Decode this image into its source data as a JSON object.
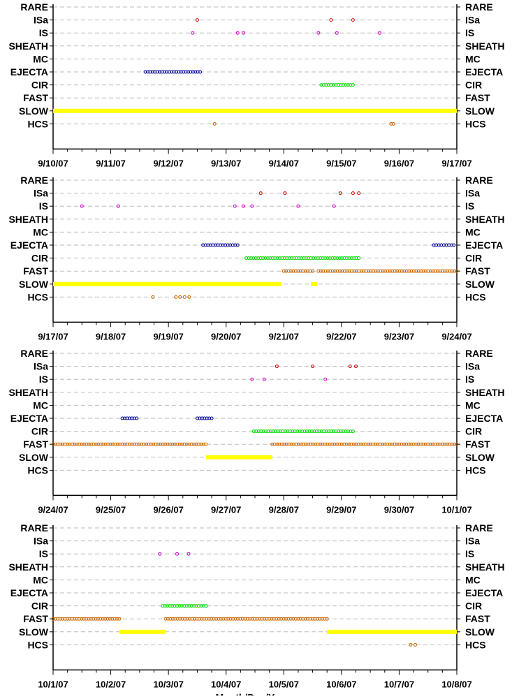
{
  "chart_data": [
    {
      "type": "scatter",
      "categories": [
        "RARE",
        "ISa",
        "IS",
        "SHEATH",
        "MC",
        "EJECTA",
        "CIR",
        "FAST",
        "SLOW",
        "HCS"
      ],
      "x_start": "9/10/07",
      "x_end": "9/17/07",
      "x_ticks": [
        "9/10/07",
        "9/11/07",
        "9/12/07",
        "9/13/07",
        "9/14/07",
        "9/15/07",
        "9/16/07",
        "9/17/07"
      ],
      "grid": true,
      "series": [
        {
          "category": "ISa",
          "color": "#cc0000",
          "points": [
            2.5,
            4.82,
            5.2
          ]
        },
        {
          "category": "IS",
          "color": "#cc00cc",
          "points": [
            2.42,
            3.2,
            3.3,
            4.6,
            4.92,
            5.66
          ]
        },
        {
          "category": "EJECTA",
          "color": "#000099",
          "spans": [
            [
              1.6,
              2.55
            ]
          ]
        },
        {
          "category": "CIR",
          "color": "#00dd00",
          "spans": [
            [
              4.65,
              5.2
            ]
          ]
        },
        {
          "category": "SLOW",
          "color": "#ffff00",
          "spans": [
            [
              0.0,
              7.0
            ]
          ]
        },
        {
          "category": "HCS",
          "color": "#cc6600",
          "points": [
            2.8,
            5.86,
            5.9
          ]
        }
      ]
    },
    {
      "type": "scatter",
      "categories": [
        "RARE",
        "ISa",
        "IS",
        "SHEATH",
        "MC",
        "EJECTA",
        "CIR",
        "FAST",
        "SLOW",
        "HCS"
      ],
      "x_start": "9/17/07",
      "x_end": "9/24/07",
      "x_ticks": [
        "9/17/07",
        "9/18/07",
        "9/19/07",
        "9/20/07",
        "9/21/07",
        "9/22/07",
        "9/23/07",
        "9/24/07"
      ],
      "grid": true,
      "series": [
        {
          "category": "ISa",
          "color": "#cc0000",
          "points": [
            3.6,
            4.02,
            4.98,
            5.2,
            5.3
          ]
        },
        {
          "category": "IS",
          "color": "#cc00cc",
          "points": [
            0.5,
            1.13,
            3.15,
            3.3,
            3.45,
            4.25,
            4.87
          ]
        },
        {
          "category": "EJECTA",
          "color": "#000099",
          "spans": [
            [
              2.6,
              3.2
            ],
            [
              6.6,
              6.95
            ]
          ]
        },
        {
          "category": "CIR",
          "color": "#00dd00",
          "spans": [
            [
              3.35,
              5.3
            ]
          ]
        },
        {
          "category": "FAST",
          "color": "#cc6600",
          "spans": [
            [
              4.0,
              4.5
            ],
            [
              4.6,
              7.0
            ]
          ]
        },
        {
          "category": "SLOW",
          "color": "#ffff00",
          "spans": [
            [
              0.0,
              3.95
            ],
            [
              4.47,
              4.58
            ]
          ]
        },
        {
          "category": "HCS",
          "color": "#cc6600",
          "points": [
            1.73,
            2.13,
            2.2,
            2.28,
            2.36
          ]
        }
      ]
    },
    {
      "type": "scatter",
      "categories": [
        "RARE",
        "ISa",
        "IS",
        "SHEATH",
        "MC",
        "EJECTA",
        "CIR",
        "FAST",
        "SLOW",
        "HCS"
      ],
      "x_start": "9/24/07",
      "x_end": "10/1/07",
      "x_ticks": [
        "9/24/07",
        "9/25/07",
        "9/26/07",
        "9/27/07",
        "9/28/07",
        "9/29/07",
        "9/30/07",
        "10/1/07"
      ],
      "grid": true,
      "series": [
        {
          "category": "ISa",
          "color": "#cc0000",
          "points": [
            3.88,
            4.5,
            5.15,
            5.25
          ]
        },
        {
          "category": "IS",
          "color": "#cc00cc",
          "points": [
            3.45,
            3.66,
            4.72
          ]
        },
        {
          "category": "EJECTA",
          "color": "#000099",
          "spans": [
            [
              1.2,
              1.45
            ],
            [
              2.5,
              2.75
            ]
          ]
        },
        {
          "category": "CIR",
          "color": "#00dd00",
          "spans": [
            [
              3.48,
              5.2
            ]
          ]
        },
        {
          "category": "FAST",
          "color": "#cc6600",
          "spans": [
            [
              0.0,
              2.65
            ],
            [
              3.8,
              7.0
            ]
          ]
        },
        {
          "category": "SLOW",
          "color": "#ffff00",
          "spans": [
            [
              2.65,
              3.8
            ]
          ]
        }
      ]
    },
    {
      "type": "scatter",
      "categories": [
        "RARE",
        "ISa",
        "IS",
        "SHEATH",
        "MC",
        "EJECTA",
        "CIR",
        "FAST",
        "SLOW",
        "HCS"
      ],
      "x_start": "10/1/07",
      "x_end": "10/8/07",
      "x_ticks": [
        "10/1/07",
        "10/2/07",
        "10/3/07",
        "10/4/07",
        "10/5/07",
        "10/6/07",
        "10/7/07",
        "10/8/07"
      ],
      "xlabel": "Month/Day/Year",
      "grid": true,
      "series": [
        {
          "category": "IS",
          "color": "#cc00cc",
          "points": [
            1.85,
            2.15,
            2.35
          ]
        },
        {
          "category": "CIR",
          "color": "#00dd00",
          "spans": [
            [
              1.9,
              2.65
            ]
          ]
        },
        {
          "category": "FAST",
          "color": "#cc6600",
          "spans": [
            [
              0.0,
              1.15
            ],
            [
              1.95,
              4.75
            ]
          ]
        },
        {
          "category": "SLOW",
          "color": "#ffff00",
          "spans": [
            [
              1.15,
              1.95
            ],
            [
              4.75,
              7.0
            ]
          ]
        },
        {
          "category": "HCS",
          "color": "#cc6600",
          "points": [
            6.2,
            6.28
          ]
        }
      ]
    }
  ]
}
